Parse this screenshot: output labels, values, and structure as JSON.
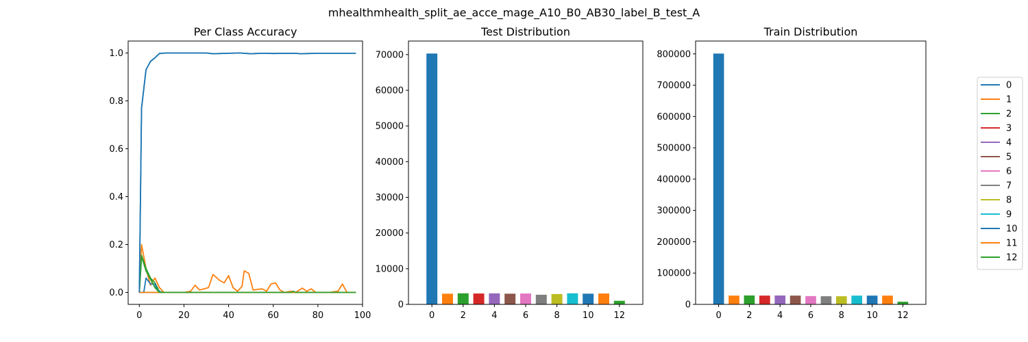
{
  "suptitle": "mhealthmhealth_split_ae_acce_mage_A10_B0_AB30_label_B_test_A",
  "colors": [
    "#1f77b4",
    "#ff7f0e",
    "#2ca02c",
    "#d62728",
    "#9467bd",
    "#8c564b",
    "#e377c2",
    "#7f7f7f",
    "#bcbd22",
    "#17becf",
    "#1f77b4",
    "#ff7f0e",
    "#2ca02c"
  ],
  "legend": {
    "placement": "right",
    "entries": [
      "0",
      "1",
      "2",
      "3",
      "4",
      "5",
      "6",
      "7",
      "8",
      "9",
      "10",
      "11",
      "12"
    ]
  },
  "chart_data": [
    {
      "type": "line",
      "title": "Per Class Accuracy",
      "xlabel": "",
      "ylabel": "",
      "xlim": [
        -5,
        100
      ],
      "ylim": [
        -0.05,
        1.05
      ],
      "xticks": [
        0,
        20,
        40,
        60,
        80,
        100
      ],
      "yticks": [
        0.0,
        0.2,
        0.4,
        0.6,
        0.8,
        1.0
      ],
      "x_count": 98,
      "series": [
        {
          "name": "0",
          "points": [
            [
              0,
              0.0
            ],
            [
              1,
              0.77
            ],
            [
              3,
              0.93
            ],
            [
              5,
              0.965
            ],
            [
              7,
              0.98
            ],
            [
              9,
              0.998
            ],
            [
              12,
              1.0
            ],
            [
              20,
              1.0
            ],
            [
              30,
              1.0
            ],
            [
              33,
              0.997
            ],
            [
              40,
              0.999
            ],
            [
              45,
              1.0
            ],
            [
              50,
              0.997
            ],
            [
              55,
              0.999
            ],
            [
              60,
              0.998
            ],
            [
              70,
              0.999
            ],
            [
              72,
              0.997
            ],
            [
              80,
              0.999
            ],
            [
              90,
              0.999
            ],
            [
              97,
              0.999
            ]
          ]
        },
        {
          "name": "1",
          "points": [
            [
              0,
              0.0
            ],
            [
              1,
              0.2
            ],
            [
              3,
              0.1
            ],
            [
              5,
              0.03
            ],
            [
              7,
              0.06
            ],
            [
              9,
              0.02
            ],
            [
              11,
              0.0
            ],
            [
              20,
              0.0
            ],
            [
              23,
              0.005
            ],
            [
              25,
              0.03
            ],
            [
              27,
              0.01
            ],
            [
              31,
              0.02
            ],
            [
              33,
              0.075
            ],
            [
              36,
              0.05
            ],
            [
              38,
              0.04
            ],
            [
              40,
              0.07
            ],
            [
              42,
              0.02
            ],
            [
              44,
              0.005
            ],
            [
              46,
              0.025
            ],
            [
              47,
              0.09
            ],
            [
              49,
              0.08
            ],
            [
              51,
              0.01
            ],
            [
              55,
              0.015
            ],
            [
              57,
              0.005
            ],
            [
              59,
              0.035
            ],
            [
              61,
              0.04
            ],
            [
              63,
              0.01
            ],
            [
              65,
              0.0
            ],
            [
              68,
              0.005
            ],
            [
              70,
              0.0
            ],
            [
              73,
              0.018
            ],
            [
              75,
              0.005
            ],
            [
              77,
              0.015
            ],
            [
              79,
              0.0
            ],
            [
              85,
              0.0
            ],
            [
              89,
              0.005
            ],
            [
              91,
              0.035
            ],
            [
              93,
              0.0
            ],
            [
              97,
              0.0
            ]
          ]
        },
        {
          "name": "2",
          "points": [
            [
              0,
              0.0
            ],
            [
              1,
              0.155
            ],
            [
              3,
              0.1
            ],
            [
              5,
              0.06
            ],
            [
              7,
              0.04
            ],
            [
              9,
              0.003
            ],
            [
              11,
              0.0
            ],
            [
              97,
              0.0
            ]
          ]
        },
        {
          "name": "3",
          "points": [
            [
              0,
              0.0
            ],
            [
              97,
              0.0
            ]
          ]
        },
        {
          "name": "4",
          "points": [
            [
              0,
              0.0
            ],
            [
              97,
              0.0
            ]
          ]
        },
        {
          "name": "5",
          "points": [
            [
              0,
              0.0
            ],
            [
              97,
              0.0
            ]
          ]
        },
        {
          "name": "6",
          "points": [
            [
              0,
              0.0
            ],
            [
              97,
              0.0
            ]
          ]
        },
        {
          "name": "7",
          "points": [
            [
              0,
              0.0
            ],
            [
              97,
              0.0
            ]
          ]
        },
        {
          "name": "8",
          "points": [
            [
              0,
              0.0
            ],
            [
              97,
              0.0
            ]
          ]
        },
        {
          "name": "9",
          "points": [
            [
              0,
              0.0
            ],
            [
              97,
              0.0
            ]
          ]
        },
        {
          "name": "10",
          "points": [
            [
              0,
              0.0
            ],
            [
              2,
              0.0
            ],
            [
              3,
              0.06
            ],
            [
              5,
              0.035
            ],
            [
              7,
              0.035
            ],
            [
              8,
              0.01
            ],
            [
              10,
              0.0
            ],
            [
              97,
              0.0
            ]
          ]
        },
        {
          "name": "11",
          "points": [
            [
              0,
              0.0
            ],
            [
              97,
              0.0
            ]
          ]
        },
        {
          "name": "12",
          "points": [
            [
              0,
              0.0
            ],
            [
              1,
              0.15
            ],
            [
              3,
              0.09
            ],
            [
              5,
              0.055
            ],
            [
              7,
              0.02
            ],
            [
              9,
              0.0
            ],
            [
              68,
              0.0
            ],
            [
              69,
              0.005
            ],
            [
              70,
              0.0
            ],
            [
              97,
              0.0
            ]
          ]
        }
      ]
    },
    {
      "type": "bar",
      "title": "Test Distribution",
      "categories": [
        0,
        1,
        2,
        3,
        4,
        5,
        6,
        7,
        8,
        9,
        10,
        11,
        12
      ],
      "values": [
        70300,
        3000,
        3100,
        3050,
        3080,
        3000,
        3050,
        2700,
        2900,
        3100,
        3000,
        3050,
        1000
      ],
      "xlim": [
        -1.5,
        13.5
      ],
      "ylim": [
        0,
        73800
      ],
      "xticks": [
        0,
        2,
        4,
        6,
        8,
        10,
        12
      ],
      "yticks": [
        0,
        10000,
        20000,
        30000,
        40000,
        50000,
        60000,
        70000
      ]
    },
    {
      "type": "bar",
      "title": "Train Distribution",
      "categories": [
        0,
        1,
        2,
        3,
        4,
        5,
        6,
        7,
        8,
        9,
        10,
        11,
        12
      ],
      "values": [
        801000,
        28000,
        28500,
        28000,
        28300,
        28000,
        26500,
        26000,
        26000,
        28000,
        28000,
        28000,
        8500
      ],
      "xlim": [
        -1.5,
        13.5
      ],
      "ylim": [
        0,
        841000
      ],
      "xticks": [
        0,
        2,
        4,
        6,
        8,
        10,
        12
      ],
      "yticks": [
        0,
        100000,
        200000,
        300000,
        400000,
        500000,
        600000,
        700000,
        800000
      ]
    }
  ]
}
